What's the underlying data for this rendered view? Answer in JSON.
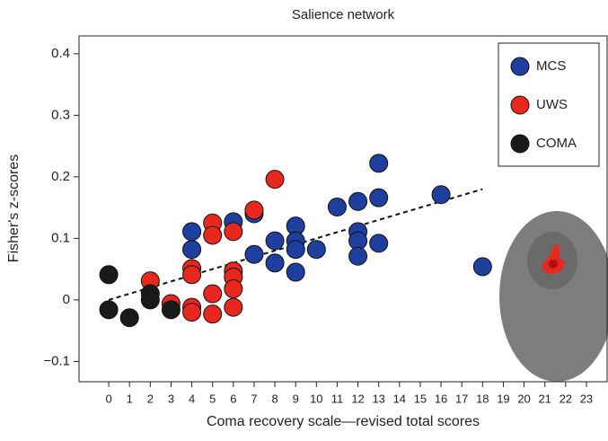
{
  "chart_data": {
    "type": "scatter",
    "title": "Salience network",
    "xlabel": "Coma recovery scale—revised total scores",
    "ylabel": "Fisher's z-scores",
    "xlim": [
      -1.43,
      24.04
    ],
    "ylim": [
      -0.133,
      0.429
    ],
    "xticks": [
      0,
      1,
      2,
      3,
      4,
      5,
      6,
      7,
      8,
      9,
      10,
      11,
      12,
      13,
      14,
      15,
      16,
      17,
      18,
      19,
      20,
      21,
      22,
      23
    ],
    "yticks": [
      {
        "value": -0.1,
        "label": "−0.1"
      },
      0,
      0.1,
      0.2,
      0.3,
      0.4
    ],
    "legend": "upper right",
    "series": [
      {
        "name": "MCS",
        "color": "#1f3f9f",
        "x": [
          4,
          4,
          6,
          7,
          7,
          8,
          8,
          9,
          9,
          9,
          9,
          10,
          11,
          12,
          12,
          12,
          12,
          13,
          13,
          13,
          16,
          18
        ],
        "y": [
          0.111,
          0.082,
          0.127,
          0.14,
          0.074,
          0.096,
          0.06,
          0.12,
          0.096,
          0.082,
          0.045,
          0.082,
          0.151,
          0.16,
          0.111,
          0.096,
          0.071,
          0.222,
          0.166,
          0.092,
          0.171,
          0.054
        ]
      },
      {
        "name": "UWS",
        "color": "#e8281e",
        "x": [
          2,
          3,
          4,
          4,
          4,
          4,
          5,
          5,
          5,
          5,
          6,
          6,
          6,
          6,
          6,
          7,
          8
        ],
        "y": [
          0.031,
          -0.006,
          0.051,
          0.041,
          -0.012,
          -0.02,
          0.125,
          0.105,
          0.01,
          -0.023,
          0.111,
          0.047,
          0.037,
          0.018,
          -0.012,
          0.146,
          0.196
        ]
      },
      {
        "name": "COMA",
        "color": "#1a1a1a",
        "x": [
          0,
          0,
          1,
          2,
          2,
          3
        ],
        "y": [
          0.041,
          -0.016,
          -0.029,
          0.01,
          0.0,
          -0.016
        ]
      }
    ],
    "trendline": {
      "x": [
        0,
        18
      ],
      "y": [
        0,
        0.18
      ]
    }
  }
}
